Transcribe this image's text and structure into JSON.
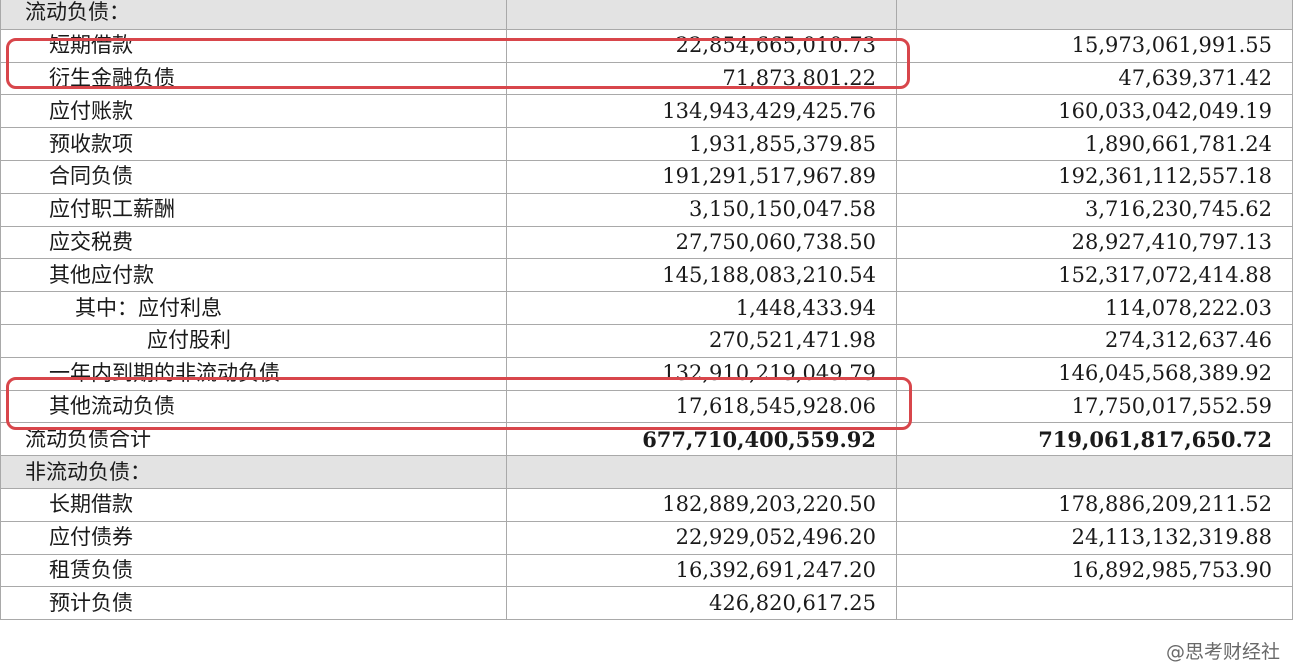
{
  "rows": [
    {
      "kind": "section",
      "label": "流动负债：",
      "v1": "",
      "v2": ""
    },
    {
      "kind": "item",
      "label": "短期借款",
      "v1": "22,854,665,010.73",
      "v2": "15,973,061,991.55"
    },
    {
      "kind": "item",
      "label": "衍生金融负债",
      "v1": "71,873,801.22",
      "v2": "47,639,371.42"
    },
    {
      "kind": "item",
      "label": "应付账款",
      "v1": "134,943,429,425.76",
      "v2": "160,033,042,049.19"
    },
    {
      "kind": "item",
      "label": "预收款项",
      "v1": "1,931,855,379.85",
      "v2": "1,890,661,781.24"
    },
    {
      "kind": "item",
      "label": "合同负债",
      "v1": "191,291,517,967.89",
      "v2": "192,361,112,557.18"
    },
    {
      "kind": "item",
      "label": "应付职工薪酬",
      "v1": "3,150,150,047.58",
      "v2": "3,716,230,745.62"
    },
    {
      "kind": "item",
      "label": "应交税费",
      "v1": "27,750,060,738.50",
      "v2": "28,927,410,797.13"
    },
    {
      "kind": "item",
      "label": "其他应付款",
      "v1": "145,188,083,210.54",
      "v2": "152,317,072,414.88"
    },
    {
      "kind": "sub",
      "label": "其中：应付利息",
      "v1": "1,448,433.94",
      "v2": "114,078,222.03"
    },
    {
      "kind": "sub2",
      "label": "应付股利",
      "v1": "270,521,471.98",
      "v2": "274,312,637.46"
    },
    {
      "kind": "item",
      "label": "一年内到期的非流动负债",
      "v1": "132,910,219,049.79",
      "v2": "146,045,568,389.92"
    },
    {
      "kind": "item",
      "label": "其他流动负债",
      "v1": "17,618,545,928.06",
      "v2": "17,750,017,552.59"
    },
    {
      "kind": "total",
      "label": "流动负债合计",
      "v1": "677,710,400,559.92",
      "v2": "719,061,817,650.72"
    },
    {
      "kind": "section",
      "label": "非流动负债：",
      "v1": "",
      "v2": ""
    },
    {
      "kind": "item",
      "label": "长期借款",
      "v1": "182,889,203,220.50",
      "v2": "178,886,209,211.52"
    },
    {
      "kind": "item",
      "label": "应付债券",
      "v1": "22,929,052,496.20",
      "v2": "24,113,132,319.88"
    },
    {
      "kind": "item",
      "label": "租赁负债",
      "v1": "16,392,691,247.20",
      "v2": "16,892,985,753.90"
    },
    {
      "kind": "item",
      "label": "预计负债",
      "v1": "426,820,617.25",
      "v2": ""
    }
  ],
  "highlight_color": "#d8464b",
  "watermark": "@思考财经社"
}
